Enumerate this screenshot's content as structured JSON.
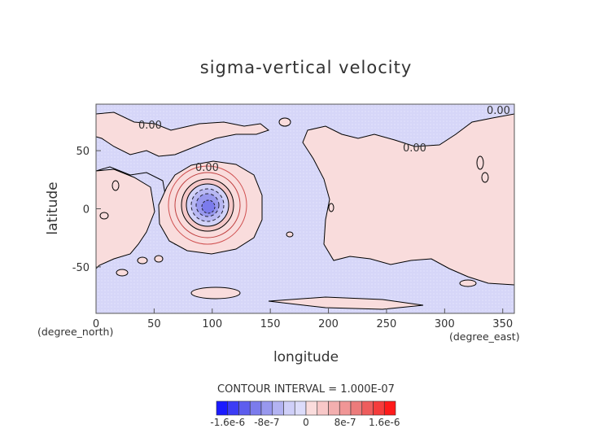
{
  "chart_data": {
    "type": "heatmap",
    "title": "sigma-vertical velocity",
    "xlabel": "longitude",
    "ylabel": "latitude",
    "x_unit": "(degree_east)",
    "y_unit": "(degree_north)",
    "xlim": [
      0,
      360
    ],
    "ylim": [
      -90,
      90
    ],
    "x_ticks": [
      "0",
      "50",
      "100",
      "150",
      "200",
      "250",
      "300",
      "350"
    ],
    "y_ticks": [
      "-50",
      "0",
      "50"
    ],
    "contour_interval_text": "CONTOUR INTERVAL = 1.000E-07",
    "contour_labels": [
      "0.00",
      "0.00",
      "0.00",
      "0.00"
    ],
    "colorbar": {
      "tick_labels": [
        "-1.6e-6",
        "-8e-7",
        "0",
        "8e-7",
        "1.6e-6"
      ],
      "colors": [
        "#1a1aff",
        "#3c3cf5",
        "#5d5dee",
        "#7b7bec",
        "#9898ee",
        "#b3b3f2",
        "#cfcff8",
        "#dcdcfa",
        "#fadcdc",
        "#f8c8c8",
        "#f3afaf",
        "#f09696",
        "#ec7b7b",
        "#ee5d5d",
        "#f53c3c",
        "#ff1a1a"
      ]
    },
    "features": [
      {
        "name": "vortex-center",
        "lon": 95,
        "lat": 0,
        "sign": "negative"
      },
      {
        "name": "positive-region-americas",
        "lon_range": [
          200,
          355
        ],
        "lat_range": [
          -60,
          70
        ],
        "sign": "positive"
      }
    ]
  }
}
